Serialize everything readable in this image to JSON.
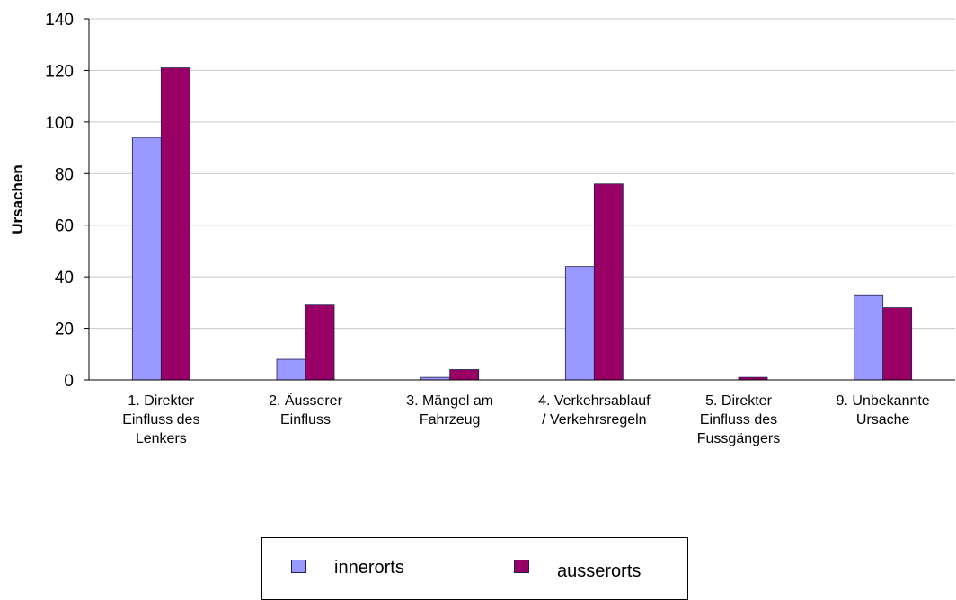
{
  "chart_data": {
    "type": "bar",
    "title": "",
    "xlabel": "",
    "ylabel": "Ursachen",
    "ylim": [
      0,
      140
    ],
    "yticks": [
      0,
      20,
      40,
      60,
      80,
      100,
      120,
      140
    ],
    "grid": true,
    "legend_position": "bottom",
    "categories": [
      [
        "1. Direkter",
        "Einfluss des",
        "Lenkers"
      ],
      [
        "2. Äusserer",
        "Einfluss"
      ],
      [
        "3. Mängel am",
        "Fahrzeug"
      ],
      [
        "4. Verkehrsablauf",
        "/ Verkehrsregeln"
      ],
      [
        "5. Direkter",
        "Einfluss des",
        "Fussgängers"
      ],
      [
        "9. Unbekannte",
        "Ursache"
      ]
    ],
    "series": [
      {
        "name": "innerorts",
        "color": "#9999ff",
        "values": [
          94,
          8,
          1,
          44,
          0,
          33
        ]
      },
      {
        "name": "ausserorts",
        "color": "#990066",
        "values": [
          121,
          29,
          4,
          76,
          1,
          28
        ]
      }
    ]
  }
}
